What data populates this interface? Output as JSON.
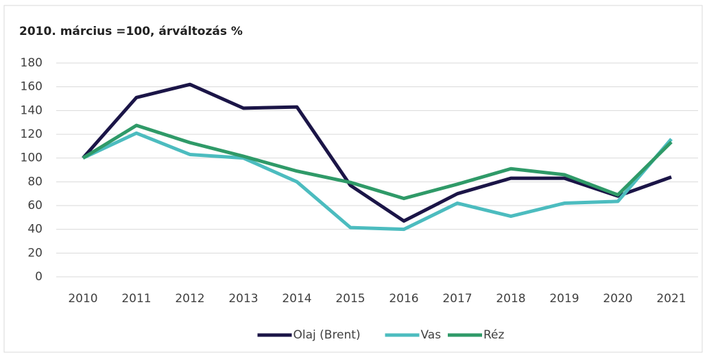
{
  "chart_data": {
    "type": "line",
    "title": "2010. március =100, árváltozás %",
    "categories": [
      "2010",
      "2011",
      "2012",
      "2013",
      "2014",
      "2015",
      "2016",
      "2017",
      "2018",
      "2019",
      "2020",
      "2021"
    ],
    "series": [
      {
        "name": "Olaj (Brent)",
        "color": "#1b1547",
        "values": [
          100,
          151,
          162,
          142,
          143,
          77,
          47,
          70,
          83,
          83,
          68,
          84
        ]
      },
      {
        "name": "Vas",
        "color": "#4cbcbf",
        "values": [
          100,
          121,
          103,
          100,
          80,
          41.5,
          40,
          62,
          51,
          62,
          63.5,
          116
        ]
      },
      {
        "name": "Réz",
        "color": "#2f9a68",
        "values": [
          100,
          127.5,
          113,
          101.5,
          89,
          79.5,
          66,
          78,
          91,
          86,
          69,
          113.5
        ]
      }
    ],
    "ylim": [
      0,
      180
    ],
    "yticks": [
      0,
      20,
      40,
      60,
      80,
      100,
      120,
      140,
      160,
      180
    ],
    "grid": true,
    "legend": "bottom"
  }
}
